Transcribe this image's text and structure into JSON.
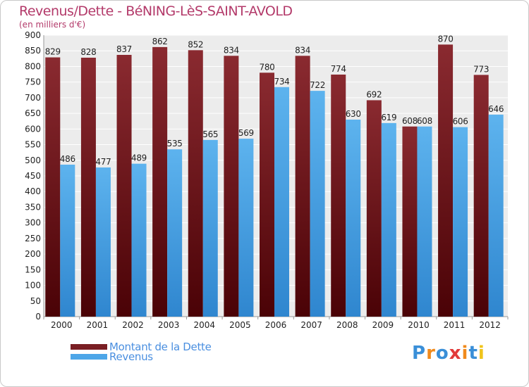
{
  "title": "Revenus/Dette - BéNING-LèS-SAINT-AVOLD",
  "subtitle": "(en milliers d'€)",
  "legend": [
    {
      "label": "Montant de la Dette",
      "color": "#7a1f24"
    },
    {
      "label": "Revenus",
      "color": "#4da6e8"
    }
  ],
  "logo": {
    "text": "Proxiti",
    "letters": [
      "P",
      "r",
      "o",
      "x",
      "i",
      "t",
      "i"
    ],
    "colors": [
      "#3a8fd8",
      "#f08a1c",
      "#3a8fd8",
      "#e23a3a",
      "#f08a1c",
      "#3a8fd8",
      "#f0c41c"
    ]
  },
  "colors": {
    "grid": "#d9d9d9",
    "axis_text": "#222222",
    "label_text": "#222222",
    "bg": "#ececec"
  },
  "chart_data": {
    "type": "bar",
    "categories": [
      "2000",
      "2001",
      "2002",
      "2003",
      "2004",
      "2005",
      "2006",
      "2007",
      "2008",
      "2009",
      "2010",
      "2011",
      "2012"
    ],
    "series": [
      {
        "name": "Montant de la Dette",
        "values": [
          829,
          828,
          837,
          862,
          852,
          834,
          780,
          834,
          774,
          692,
          608,
          870,
          773
        ]
      },
      {
        "name": "Revenus",
        "values": [
          486,
          477,
          489,
          535,
          565,
          569,
          734,
          722,
          630,
          619,
          608,
          606,
          646
        ]
      }
    ],
    "ylim": [
      0,
      900
    ],
    "yticks": [
      0,
      50,
      100,
      150,
      200,
      250,
      300,
      350,
      400,
      450,
      500,
      550,
      600,
      650,
      700,
      750,
      800,
      850,
      900
    ],
    "grid": true,
    "legend_position": "bottom-left"
  }
}
